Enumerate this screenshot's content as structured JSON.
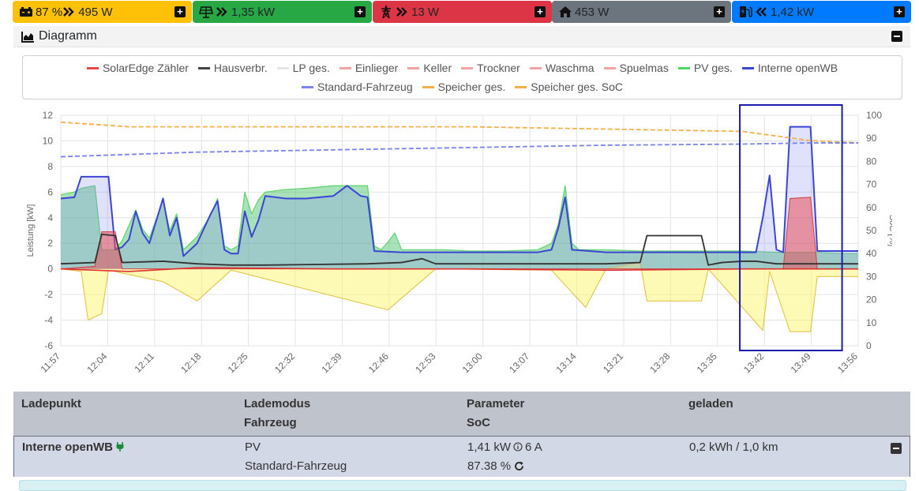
{
  "status_bar": {
    "battery": {
      "text": "87 % ",
      "power": "495 W",
      "color": "#ffc107",
      "icon": "car-battery-icon",
      "direction": "charging"
    },
    "pv": {
      "power": "1,35 kW",
      "color": "#28a745",
      "icon": "solar-panel-icon",
      "direction": "producing"
    },
    "grid": {
      "power": "13 W",
      "color": "#dc3545",
      "icon": "power-tower-icon",
      "direction": "import"
    },
    "house": {
      "power": "453 W",
      "color": "#6c757d",
      "icon": "home-icon"
    },
    "chargepoint": {
      "power": "1,42 kW",
      "color": "#007bff",
      "icon": "charging-station-icon",
      "direction": "charging"
    }
  },
  "diagram": {
    "title": "Diagramm",
    "icon": "area-chart-icon"
  },
  "legend": [
    {
      "label": "SolarEdge Zähler",
      "color": "#e84848"
    },
    {
      "label": "Hausverbr.",
      "color": "#444444"
    },
    {
      "label": "LP ges.",
      "color": "#e6e6e6"
    },
    {
      "label": "Einlieger",
      "color": "#f2a4a4"
    },
    {
      "label": "Keller",
      "color": "#f2a4a4"
    },
    {
      "label": "Trockner",
      "color": "#f2a4a4"
    },
    {
      "label": "Waschma",
      "color": "#f2a4a4"
    },
    {
      "label": "Spuelmas",
      "color": "#f2a4a4"
    },
    {
      "label": "PV ges.",
      "color": "#4cd964"
    },
    {
      "label": "Interne openWB",
      "color": "#3b45d4"
    },
    {
      "label": "Standard-Fahrzeug",
      "color": "#7b84ea"
    },
    {
      "label": "Speicher ges.",
      "color": "#f5b04a"
    },
    {
      "label": "Speicher ges. SoC",
      "color": "#f5b04a"
    }
  ],
  "chart_data": {
    "type": "area",
    "ylabel": "Leistung [kW]",
    "y2label": "SoC [%]",
    "ylim": [
      -6,
      12
    ],
    "y2lim": [
      0,
      100
    ],
    "yticks": [
      "12",
      "10",
      "8",
      "6",
      "4",
      "2",
      "0",
      "-2",
      "-4",
      "-6"
    ],
    "y2ticks": [
      "100",
      "90",
      "80",
      "70",
      "60",
      "50",
      "40",
      "30",
      "20",
      "10",
      "0"
    ],
    "xticks": [
      "11:57",
      "12:04",
      "12:11",
      "12:18",
      "12:25",
      "12:32",
      "12:39",
      "12:46",
      "12:53",
      "13:00",
      "13:07",
      "13:14",
      "13:21",
      "13:28",
      "13:35",
      "13:42",
      "13:49",
      "13:56"
    ],
    "grid": true,
    "highlight": {
      "from": "13:41",
      "to": "13:53"
    },
    "series": [
      {
        "name": "PV ges.",
        "axis": "left",
        "points": [
          [
            0,
            5.8
          ],
          [
            2,
            6.0
          ],
          [
            3,
            6.3
          ],
          [
            5,
            6.5
          ],
          [
            6,
            1.5
          ],
          [
            8,
            1.5
          ],
          [
            9,
            2.2
          ],
          [
            11,
            4.6
          ],
          [
            12,
            3.1
          ],
          [
            13,
            2.4
          ],
          [
            15,
            5.4
          ],
          [
            16,
            3.0
          ],
          [
            17,
            4.3
          ],
          [
            18,
            1.5
          ],
          [
            20,
            2.5
          ],
          [
            22,
            4.2
          ],
          [
            23,
            5.5
          ],
          [
            24,
            1.8
          ],
          [
            25,
            1.5
          ],
          [
            26,
            1.8
          ],
          [
            27,
            6.0
          ],
          [
            28,
            4.3
          ],
          [
            29,
            5.4
          ],
          [
            30,
            6.0
          ],
          [
            33,
            6.2
          ],
          [
            36,
            6.3
          ],
          [
            40,
            6.5
          ],
          [
            45,
            6.5
          ],
          [
            46,
            1.8
          ],
          [
            47,
            1.5
          ],
          [
            48,
            2.1
          ],
          [
            49,
            2.8
          ],
          [
            50,
            1.5
          ],
          [
            53,
            1.5
          ],
          [
            56,
            1.5
          ],
          [
            60,
            1.4
          ],
          [
            65,
            1.4
          ],
          [
            70,
            1.5
          ],
          [
            72,
            2.0
          ],
          [
            73,
            3.5
          ],
          [
            74,
            6.5
          ],
          [
            75,
            2.0
          ],
          [
            76,
            1.5
          ],
          [
            80,
            1.5
          ],
          [
            85,
            1.4
          ],
          [
            88,
            1.4
          ],
          [
            90,
            1.4
          ],
          [
            95,
            1.4
          ],
          [
            100,
            1.4
          ],
          [
            105,
            1.3
          ],
          [
            110,
            1.3
          ],
          [
            115,
            1.2
          ],
          [
            117,
            1.2
          ]
        ]
      },
      {
        "name": "Interne openWB",
        "axis": "left",
        "points": [
          [
            0,
            5.5
          ],
          [
            2,
            5.6
          ],
          [
            3,
            7.2
          ],
          [
            7,
            7.2
          ],
          [
            8,
            1.5
          ],
          [
            9,
            1.7
          ],
          [
            10,
            2.3
          ],
          [
            11,
            4.5
          ],
          [
            12,
            2.8
          ],
          [
            13,
            2.0
          ],
          [
            15,
            5.5
          ],
          [
            16,
            2.6
          ],
          [
            17,
            4.0
          ],
          [
            18,
            1.0
          ],
          [
            20,
            2.0
          ],
          [
            22,
            4.3
          ],
          [
            23,
            5.3
          ],
          [
            24,
            1.5
          ],
          [
            25,
            1.2
          ],
          [
            26,
            1.2
          ],
          [
            27,
            4.5
          ],
          [
            28,
            2.5
          ],
          [
            29,
            3.8
          ],
          [
            30,
            5.7
          ],
          [
            33,
            5.5
          ],
          [
            36,
            5.5
          ],
          [
            40,
            5.7
          ],
          [
            42,
            6.5
          ],
          [
            44,
            5.7
          ],
          [
            45,
            5.6
          ],
          [
            46,
            1.4
          ],
          [
            50,
            1.3
          ],
          [
            56,
            1.3
          ],
          [
            60,
            1.3
          ],
          [
            65,
            1.3
          ],
          [
            70,
            1.3
          ],
          [
            72,
            1.5
          ],
          [
            73,
            3.2
          ],
          [
            74,
            5.6
          ],
          [
            75,
            1.5
          ],
          [
            80,
            1.3
          ],
          [
            90,
            1.3
          ],
          [
            95,
            1.3
          ],
          [
            100,
            1.3
          ],
          [
            102,
            1.3
          ],
          [
            103,
            4.0
          ],
          [
            104,
            7.3
          ],
          [
            105,
            1.5
          ],
          [
            106,
            1.3
          ],
          [
            107,
            11.1
          ],
          [
            110,
            11.1
          ],
          [
            111,
            1.4
          ],
          [
            117,
            1.4
          ]
        ]
      },
      {
        "name": "Hausverbr.",
        "axis": "left",
        "points": [
          [
            0,
            0.4
          ],
          [
            5,
            0.5
          ],
          [
            6,
            2.7
          ],
          [
            8,
            2.6
          ],
          [
            9,
            0.5
          ],
          [
            15,
            0.6
          ],
          [
            20,
            0.4
          ],
          [
            25,
            0.3
          ],
          [
            30,
            0.3
          ],
          [
            45,
            0.4
          ],
          [
            50,
            0.5
          ],
          [
            53,
            0.8
          ],
          [
            55,
            0.4
          ],
          [
            60,
            0.4
          ],
          [
            70,
            0.4
          ],
          [
            80,
            0.4
          ],
          [
            85,
            0.5
          ],
          [
            86,
            2.6
          ],
          [
            94,
            2.6
          ],
          [
            95,
            0.3
          ],
          [
            97,
            0.5
          ],
          [
            100,
            0.6
          ],
          [
            102,
            0.6
          ],
          [
            105,
            0.4
          ],
          [
            110,
            0.4
          ],
          [
            117,
            0.4
          ]
        ]
      },
      {
        "name": "Speicher ges.",
        "axis": "left",
        "points": [
          [
            0,
            0
          ],
          [
            3,
            -0.2
          ],
          [
            4,
            -4.0
          ],
          [
            6,
            -3.5
          ],
          [
            7,
            -0.1
          ],
          [
            15,
            -1.0
          ],
          [
            20,
            -2.5
          ],
          [
            25,
            -0.1
          ],
          [
            48,
            -3.2
          ],
          [
            55,
            0
          ],
          [
            72,
            -0.1
          ],
          [
            77,
            -3.0
          ],
          [
            80,
            0
          ],
          [
            85,
            0.5
          ],
          [
            86,
            -2.5
          ],
          [
            94,
            -2.5
          ],
          [
            95,
            0
          ],
          [
            103,
            -4.8
          ],
          [
            104,
            -0.2
          ],
          [
            107,
            -4.9
          ],
          [
            110,
            -4.9
          ],
          [
            111,
            -0.6
          ],
          [
            117,
            -0.6
          ]
        ]
      },
      {
        "name": "SolarEdge Zähler",
        "axis": "left",
        "points": [
          [
            0,
            0
          ],
          [
            10,
            -0.2
          ],
          [
            20,
            0.1
          ],
          [
            40,
            0
          ],
          [
            60,
            0
          ],
          [
            80,
            -0.1
          ],
          [
            100,
            0
          ],
          [
            117,
            0
          ]
        ]
      },
      {
        "name": "Einlieger",
        "axis": "left",
        "points": [
          [
            0,
            0
          ],
          [
            5,
            0.2
          ],
          [
            6,
            2.9
          ],
          [
            8,
            2.9
          ],
          [
            9,
            0
          ],
          [
            106,
            0
          ],
          [
            107,
            5.5
          ],
          [
            110,
            5.6
          ],
          [
            111,
            0
          ],
          [
            117,
            0
          ]
        ]
      },
      {
        "name": "Speicher ges. SoC",
        "axis": "right",
        "points": [
          [
            0,
            97
          ],
          [
            5,
            96
          ],
          [
            10,
            95
          ],
          [
            20,
            95
          ],
          [
            40,
            95
          ],
          [
            60,
            95
          ],
          [
            80,
            94
          ],
          [
            100,
            93
          ],
          [
            105,
            91
          ],
          [
            110,
            89
          ],
          [
            117,
            88
          ]
        ]
      },
      {
        "name": "Standard-Fahrzeug",
        "axis": "right",
        "points": [
          [
            0,
            82
          ],
          [
            10,
            83
          ],
          [
            20,
            84
          ],
          [
            40,
            85
          ],
          [
            60,
            86
          ],
          [
            80,
            87
          ],
          [
            100,
            87.5
          ],
          [
            110,
            88
          ],
          [
            117,
            88
          ]
        ]
      }
    ]
  },
  "table": {
    "headers": [
      {
        "line1": "Ladepunkt",
        "line2": ""
      },
      {
        "line1": "Lademodus",
        "line2": "Fahrzeug"
      },
      {
        "line1": "Parameter",
        "line2": "SoC"
      },
      {
        "line1": "geladen",
        "line2": ""
      }
    ],
    "rows": [
      {
        "name": "Interne openWB",
        "mode": "PV",
        "vehicle": "Standard-Fahrzeug",
        "power": "1,41 kW",
        "current": "6 A",
        "soc": "87.38 %",
        "charged": "0,2 kWh / 1,0 km"
      }
    ]
  }
}
